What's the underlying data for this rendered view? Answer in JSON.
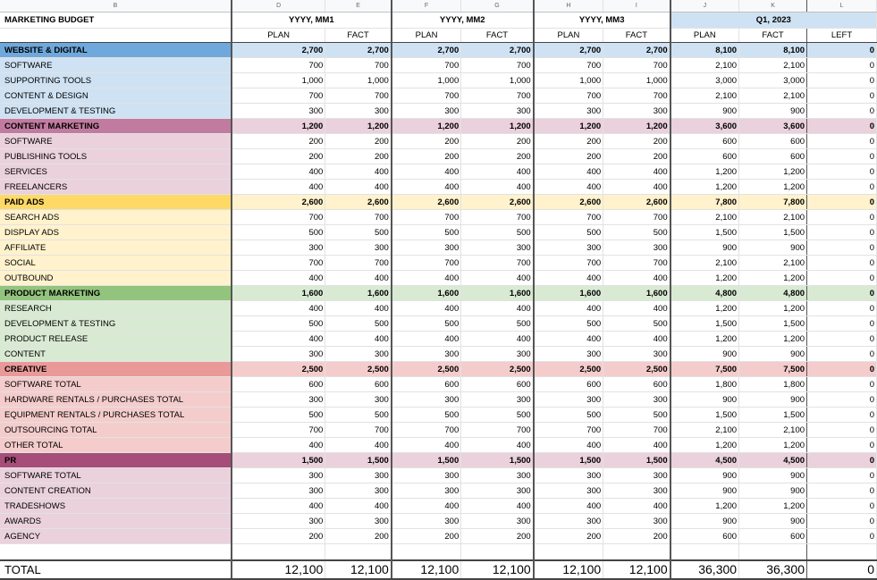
{
  "column_letters": [
    "B",
    "D",
    "E",
    "F",
    "G",
    "H",
    "I",
    "J",
    "K",
    "L"
  ],
  "title": "MARKETING BUDGET",
  "periods": [
    "YYYY, MM1",
    "YYYY, MM2",
    "YYYY, MM3",
    "Q1, 2023"
  ],
  "subheaders": [
    "PLAN",
    "FACT",
    "PLAN",
    "FACT",
    "PLAN",
    "FACT",
    "PLAN",
    "FACT",
    "LEFT"
  ],
  "sections": [
    {
      "name": "WEBSITE & DIGITAL",
      "cat_color": "#6fa8dc",
      "bg_color": "#cfe2f3",
      "totals": [
        "2,700",
        "2,700",
        "2,700",
        "2,700",
        "2,700",
        "2,700",
        "8,100",
        "8,100",
        "0"
      ],
      "rows": [
        {
          "label": "SOFTWARE",
          "values": [
            "700",
            "700",
            "700",
            "700",
            "700",
            "700",
            "2,100",
            "2,100",
            "0"
          ]
        },
        {
          "label": "SUPPORTING TOOLS",
          "values": [
            "1,000",
            "1,000",
            "1,000",
            "1,000",
            "1,000",
            "1,000",
            "3,000",
            "3,000",
            "0"
          ]
        },
        {
          "label": "CONTENT & DESIGN",
          "values": [
            "700",
            "700",
            "700",
            "700",
            "700",
            "700",
            "2,100",
            "2,100",
            "0"
          ]
        },
        {
          "label": "DEVELOPMENT & TESTING",
          "values": [
            "300",
            "300",
            "300",
            "300",
            "300",
            "300",
            "900",
            "900",
            "0"
          ]
        }
      ]
    },
    {
      "name": "CONTENT MARKETING",
      "cat_color": "#c27ba0",
      "bg_color": "#ead1dc",
      "totals": [
        "1,200",
        "1,200",
        "1,200",
        "1,200",
        "1,200",
        "1,200",
        "3,600",
        "3,600",
        "0"
      ],
      "rows": [
        {
          "label": "SOFTWARE",
          "values": [
            "200",
            "200",
            "200",
            "200",
            "200",
            "200",
            "600",
            "600",
            "0"
          ]
        },
        {
          "label": "PUBLISHING TOOLS",
          "values": [
            "200",
            "200",
            "200",
            "200",
            "200",
            "200",
            "600",
            "600",
            "0"
          ]
        },
        {
          "label": "SERVICES",
          "values": [
            "400",
            "400",
            "400",
            "400",
            "400",
            "400",
            "1,200",
            "1,200",
            "0"
          ]
        },
        {
          "label": "FREELANCERS",
          "values": [
            "400",
            "400",
            "400",
            "400",
            "400",
            "400",
            "1,200",
            "1,200",
            "0"
          ]
        }
      ]
    },
    {
      "name": "PAID ADS",
      "cat_color": "#ffd966",
      "bg_color": "#fff2cc",
      "totals": [
        "2,600",
        "2,600",
        "2,600",
        "2,600",
        "2,600",
        "2,600",
        "7,800",
        "7,800",
        "0"
      ],
      "rows": [
        {
          "label": "SEARCH ADS",
          "values": [
            "700",
            "700",
            "700",
            "700",
            "700",
            "700",
            "2,100",
            "2,100",
            "0"
          ]
        },
        {
          "label": "DISPLAY ADS",
          "values": [
            "500",
            "500",
            "500",
            "500",
            "500",
            "500",
            "1,500",
            "1,500",
            "0"
          ]
        },
        {
          "label": "AFFILIATE",
          "values": [
            "300",
            "300",
            "300",
            "300",
            "300",
            "300",
            "900",
            "900",
            "0"
          ]
        },
        {
          "label": "SOCIAL",
          "values": [
            "700",
            "700",
            "700",
            "700",
            "700",
            "700",
            "2,100",
            "2,100",
            "0"
          ]
        },
        {
          "label": "OUTBOUND",
          "values": [
            "400",
            "400",
            "400",
            "400",
            "400",
            "400",
            "1,200",
            "1,200",
            "0"
          ]
        }
      ]
    },
    {
      "name": "PRODUCT MARKETING",
      "cat_color": "#93c47d",
      "bg_color": "#d9ead3",
      "totals": [
        "1,600",
        "1,600",
        "1,600",
        "1,600",
        "1,600",
        "1,600",
        "4,800",
        "4,800",
        "0"
      ],
      "rows": [
        {
          "label": "RESEARCH",
          "values": [
            "400",
            "400",
            "400",
            "400",
            "400",
            "400",
            "1,200",
            "1,200",
            "0"
          ]
        },
        {
          "label": "DEVELOPMENT & TESTING",
          "values": [
            "500",
            "500",
            "500",
            "500",
            "500",
            "500",
            "1,500",
            "1,500",
            "0"
          ]
        },
        {
          "label": "PRODUCT RELEASE",
          "values": [
            "400",
            "400",
            "400",
            "400",
            "400",
            "400",
            "1,200",
            "1,200",
            "0"
          ]
        },
        {
          "label": "CONTENT",
          "values": [
            "300",
            "300",
            "300",
            "300",
            "300",
            "300",
            "900",
            "900",
            "0"
          ]
        }
      ]
    },
    {
      "name": "CREATIVE",
      "cat_color": "#ea9999",
      "bg_color": "#f4cccc",
      "totals": [
        "2,500",
        "2,500",
        "2,500",
        "2,500",
        "2,500",
        "2,500",
        "7,500",
        "7,500",
        "0"
      ],
      "rows": [
        {
          "label": "SOFTWARE TOTAL",
          "values": [
            "600",
            "600",
            "600",
            "600",
            "600",
            "600",
            "1,800",
            "1,800",
            "0"
          ]
        },
        {
          "label": "HARDWARE RENTALS / PURCHASES TOTAL",
          "values": [
            "300",
            "300",
            "300",
            "300",
            "300",
            "300",
            "900",
            "900",
            "0"
          ]
        },
        {
          "label": "EQUIPMENT RENTALS / PURCHASES TOTAL",
          "values": [
            "500",
            "500",
            "500",
            "500",
            "500",
            "500",
            "1,500",
            "1,500",
            "0"
          ]
        },
        {
          "label": "OUTSOURCING TOTAL",
          "values": [
            "700",
            "700",
            "700",
            "700",
            "700",
            "700",
            "2,100",
            "2,100",
            "0"
          ]
        },
        {
          "label": "OTHER TOTAL",
          "values": [
            "400",
            "400",
            "400",
            "400",
            "400",
            "400",
            "1,200",
            "1,200",
            "0"
          ]
        }
      ]
    },
    {
      "name": "PR",
      "cat_color": "#a64d79",
      "bg_color": "#ead1dc",
      "totals": [
        "1,500",
        "1,500",
        "1,500",
        "1,500",
        "1,500",
        "1,500",
        "4,500",
        "4,500",
        "0"
      ],
      "rows": [
        {
          "label": "SOFTWARE TOTAL",
          "values": [
            "300",
            "300",
            "300",
            "300",
            "300",
            "300",
            "900",
            "900",
            "0"
          ]
        },
        {
          "label": "CONTENT CREATION",
          "values": [
            "300",
            "300",
            "300",
            "300",
            "300",
            "300",
            "900",
            "900",
            "0"
          ]
        },
        {
          "label": "TRADESHOWS",
          "values": [
            "400",
            "400",
            "400",
            "400",
            "400",
            "400",
            "1,200",
            "1,200",
            "0"
          ]
        },
        {
          "label": "AWARDS",
          "values": [
            "300",
            "300",
            "300",
            "300",
            "300",
            "300",
            "900",
            "900",
            "0"
          ]
        },
        {
          "label": "AGENCY",
          "values": [
            "200",
            "200",
            "200",
            "200",
            "200",
            "200",
            "600",
            "600",
            "0"
          ]
        }
      ]
    }
  ],
  "total": {
    "label": "TOTAL",
    "values": [
      "12,100",
      "12,100",
      "12,100",
      "12,100",
      "12,100",
      "12,100",
      "36,300",
      "36,300",
      "0"
    ]
  },
  "q1_header_color": "#cfe2f3"
}
